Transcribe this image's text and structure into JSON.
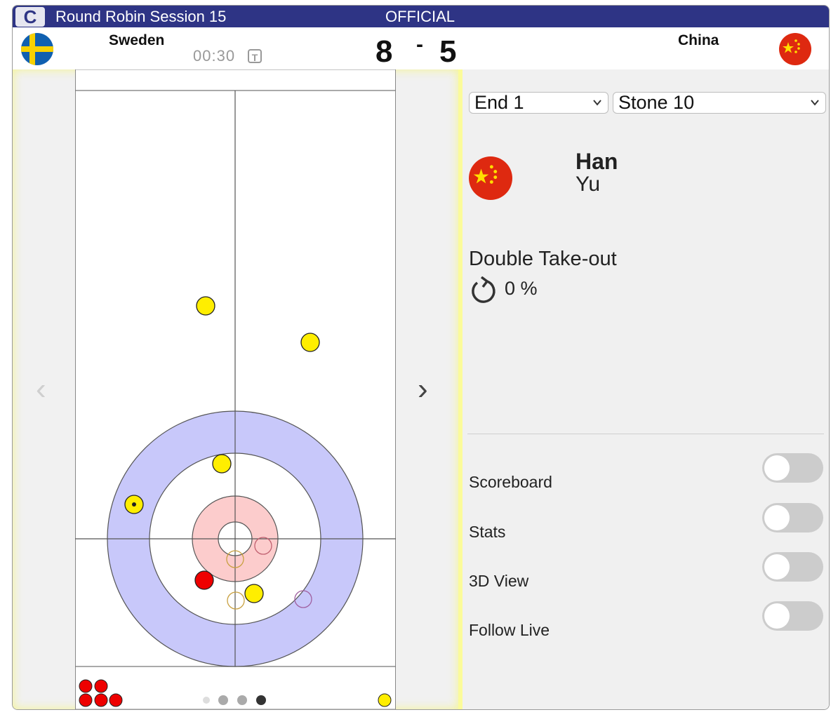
{
  "header": {
    "logo_letter": "C",
    "session": "Round Robin Session 15",
    "status": "OFFICIAL",
    "timer": "00:30",
    "timer_badge": "T",
    "home": {
      "name": "Sweden",
      "score": "8"
    },
    "away": {
      "name": "China",
      "score": "5"
    },
    "score_separator": "-"
  },
  "sheet": {
    "prev_arrow": "‹",
    "next_arrow": "›",
    "page_dots": 4,
    "active_dot": 4
  },
  "panel": {
    "end_select": "End 1",
    "stone_select": "Stone 10",
    "player_first": "Han",
    "player_last": "Yu",
    "shot_type": "Double Take-out",
    "rotation_icon": "counter-clockwise-rotation-icon",
    "percent": "0 %",
    "toggles": [
      {
        "label": "Scoreboard",
        "on": false
      },
      {
        "label": "Stats",
        "on": false
      },
      {
        "label": "3D View",
        "on": false
      },
      {
        "label": "Follow Live",
        "on": false
      }
    ]
  },
  "colors": {
    "topbar": "#2e3485",
    "yellow_stone": "#ffee00",
    "red_stone": "#ee0000",
    "house_outer": "#c8c8fa",
    "house_four": "#fccccc"
  }
}
